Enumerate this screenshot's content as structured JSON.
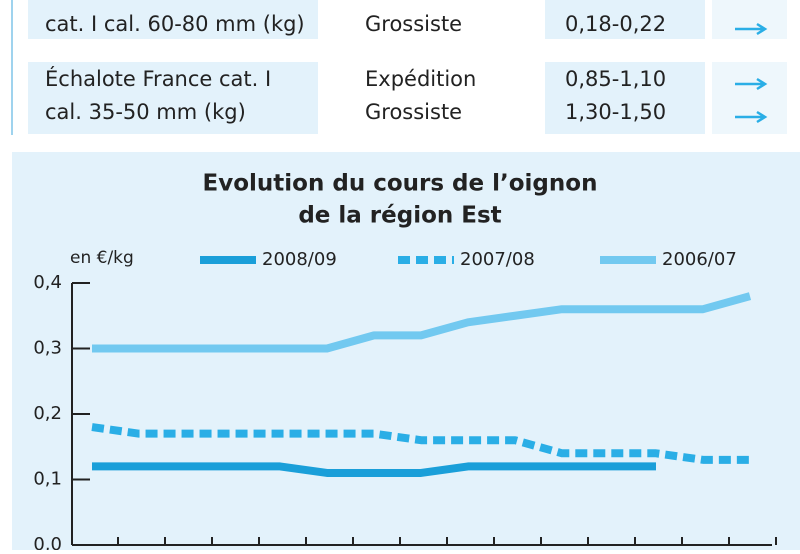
{
  "table": {
    "rows": [
      {
        "product": [
          "cat. I cal. 60-80 mm (kg)"
        ],
        "markets": [
          "Grossiste"
        ],
        "prices": [
          "0,18-0,22"
        ]
      },
      {
        "product": [
          "Échalote France cat. I",
          "cal. 35-50 mm (kg)"
        ],
        "markets": [
          "Expédition",
          "Grossiste"
        ],
        "prices": [
          "0,85-1,10",
          "1,30-1,50"
        ]
      }
    ]
  },
  "chart_data": {
    "type": "line",
    "title": [
      "Evolution du cours de l’oignon",
      "de la région Est"
    ],
    "y_label": "en €/kg",
    "categories": [
      null,
      null,
      null,
      null,
      null,
      null,
      null,
      null,
      null,
      null,
      null,
      null,
      null,
      null,
      null
    ],
    "ylim": [
      0,
      0.4
    ],
    "yticks": [
      {
        "value": 0,
        "label": "0,0"
      },
      {
        "value": 0.1,
        "label": "0,1"
      },
      {
        "value": 0.2,
        "label": "0,2"
      },
      {
        "value": 0.3,
        "label": "0,3"
      },
      {
        "value": 0.4,
        "label": "0,4"
      }
    ],
    "legend": "top",
    "series": [
      {
        "name": "2008/09",
        "color": "#1a9fd9",
        "style": "solid",
        "values": [
          0.12,
          0.12,
          0.12,
          0.12,
          0.12,
          0.11,
          0.11,
          0.11,
          0.12,
          0.12,
          0.12,
          0.12,
          0.12,
          null,
          null
        ]
      },
      {
        "name": "2007/08",
        "color": "#2aaee6",
        "style": "dashed",
        "values": [
          0.18,
          0.17,
          0.17,
          0.17,
          0.17,
          0.17,
          0.17,
          0.16,
          0.16,
          0.16,
          0.14,
          0.14,
          0.14,
          0.13,
          0.13
        ]
      },
      {
        "name": "2006/07",
        "color": "#72c9f0",
        "style": "solid",
        "values": [
          0.3,
          0.3,
          0.3,
          0.3,
          0.3,
          0.3,
          0.32,
          0.32,
          0.34,
          0.35,
          0.36,
          0.36,
          0.36,
          0.36,
          0.38
        ]
      }
    ]
  }
}
